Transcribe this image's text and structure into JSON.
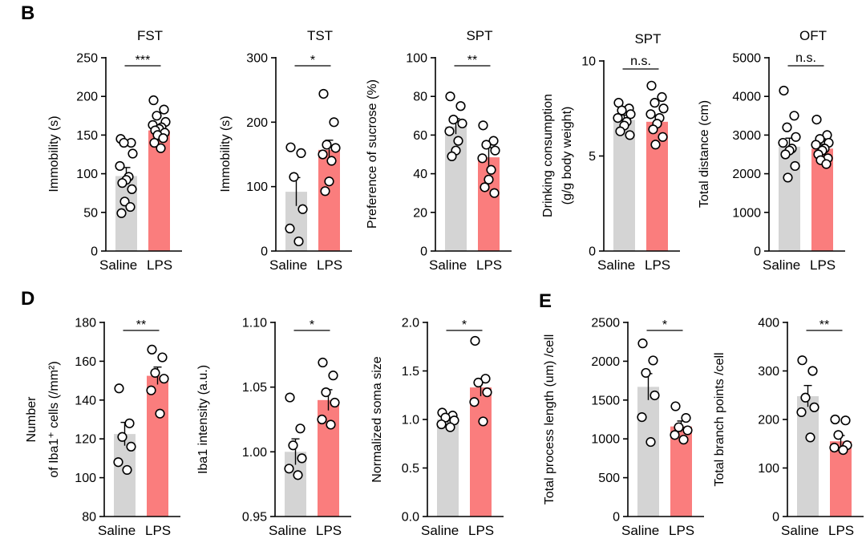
{
  "panel_letters": [
    "B",
    "D",
    "E"
  ],
  "colors": {
    "saline": "#d4d4d4",
    "lps": "#fa7d7d"
  },
  "chart_data": [
    {
      "type": "bar",
      "id": "fst",
      "title": "FST",
      "ylabel": "Immobility (s)",
      "categories": [
        "Saline",
        "LPS"
      ],
      "ylim": [
        0,
        250
      ],
      "yticks": [
        "0",
        "50",
        "100",
        "150",
        "200",
        "250"
      ],
      "values": [
        97,
        156
      ],
      "sem": [
        11,
        5
      ],
      "significance": "***",
      "points": [
        [
          145,
          140,
          140,
          126,
          110,
          96,
          92,
          88,
          80,
          64,
          57,
          49
        ],
        [
          195,
          183,
          175,
          167,
          163,
          160,
          158,
          156,
          153,
          150,
          146,
          140,
          133
        ]
      ]
    },
    {
      "type": "bar",
      "id": "tst",
      "title": "TST",
      "ylabel": "Immobility (s)",
      "categories": [
        "Saline",
        "LPS"
      ],
      "ylim": [
        0,
        300
      ],
      "yticks": [
        "0",
        "100",
        "200",
        "300"
      ],
      "values": [
        92,
        157
      ],
      "sem": [
        22,
        15
      ],
      "significance": "*",
      "points": [
        [
          161,
          152,
          115,
          65,
          35,
          15
        ],
        [
          244,
          200,
          165,
          160,
          150,
          140,
          108,
          93
        ]
      ]
    },
    {
      "type": "bar",
      "id": "spt-pref",
      "title": "SPT",
      "ylabel": "Preference of sucrose (%)",
      "categories": [
        "Saline",
        "LPS"
      ],
      "ylim": [
        0,
        100
      ],
      "yticks": [
        "0",
        "20",
        "40",
        "60",
        "80",
        "100"
      ],
      "values": [
        64.5,
        48.5
      ],
      "sem": [
        4,
        5
      ],
      "significance": "**",
      "points": [
        [
          80,
          75,
          68,
          66,
          62,
          57,
          52,
          49
        ],
        [
          65,
          57,
          55,
          52,
          48,
          42,
          37,
          33,
          30
        ]
      ]
    },
    {
      "type": "bar",
      "id": "spt-drink",
      "title": "SPT",
      "ylabel": "Drinking consumption",
      "ylabel2": "(g/g body weight)",
      "categories": [
        "Saline",
        "LPS"
      ],
      "ylim": [
        0,
        10
      ],
      "yticks": [
        "0",
        "5",
        "10"
      ],
      "values": [
        6.9,
        6.8
      ],
      "sem": [
        0.25,
        0.35
      ],
      "significance": "n.s.",
      "points": [
        [
          7.8,
          7.5,
          7.4,
          7.2,
          7.0,
          6.8,
          6.6,
          6.3,
          6.1
        ],
        [
          8.7,
          8.1,
          7.8,
          7.5,
          7.2,
          7.0,
          6.7,
          6.4,
          6.0,
          5.6
        ]
      ]
    },
    {
      "type": "bar",
      "id": "oft",
      "title": "OFT",
      "ylabel": "Total distance (cm)",
      "categories": [
        "Saline",
        "LPS"
      ],
      "ylim": [
        0,
        5000
      ],
      "yticks": [
        "0",
        "1000",
        "2000",
        "3000",
        "4000",
        "5000"
      ],
      "values": [
        2700,
        2650
      ],
      "sem": [
        220,
        110
      ],
      "significance": "n.s.",
      "points": [
        [
          4150,
          3500,
          3200,
          2950,
          2800,
          2650,
          2600,
          2500,
          2200,
          1900
        ],
        [
          3400,
          3000,
          2900,
          2800,
          2750,
          2650,
          2600,
          2500,
          2400,
          2350,
          2250
        ]
      ]
    },
    {
      "type": "bar",
      "id": "iba1-number",
      "title": "",
      "ylabel": "Number",
      "ylabel2": "of Iba1⁺ cells (/mm²)",
      "categories": [
        "Saline",
        "LPS"
      ],
      "ylim": [
        80,
        180
      ],
      "yticks": [
        "80",
        "100",
        "120",
        "140",
        "160",
        "180"
      ],
      "values": [
        122.5,
        152.5
      ],
      "sem": [
        6,
        4.5
      ],
      "significance": "**",
      "points": [
        [
          146,
          128,
          121,
          116,
          108,
          104
        ],
        [
          166,
          162,
          154,
          151,
          145,
          133
        ]
      ]
    },
    {
      "type": "bar",
      "id": "iba1-intensity",
      "title": "",
      "ylabel": "Iba1 intensity (a.u.)",
      "categories": [
        "Saline",
        "LPS"
      ],
      "ylim": [
        0.95,
        1.1
      ],
      "yticks": [
        "0.95",
        "1.00",
        "1.05",
        "1.10"
      ],
      "values": [
        1.0,
        1.04
      ],
      "sem": [
        0.01,
        0.008
      ],
      "significance": "*",
      "points": [
        [
          1.042,
          1.018,
          1.005,
          0.995,
          0.987,
          0.982
        ],
        [
          1.069,
          1.059,
          1.046,
          1.038,
          1.025,
          1.021
        ]
      ]
    },
    {
      "type": "bar",
      "id": "soma-size",
      "title": "",
      "ylabel": "Normalized soma size",
      "categories": [
        "Saline",
        "LPS"
      ],
      "ylim": [
        0,
        2
      ],
      "yticks": [
        "0.0",
        "0.5",
        "1.0",
        "1.5",
        "2.0"
      ],
      "values": [
        1.0,
        1.33
      ],
      "sem": [
        0.03,
        0.09
      ],
      "significance": "*",
      "points": [
        [
          1.07,
          1.04,
          1.02,
          0.99,
          0.95,
          0.92
        ],
        [
          1.81,
          1.42,
          1.38,
          1.28,
          1.18,
          0.98
        ]
      ]
    },
    {
      "type": "bar",
      "id": "process-length",
      "title": "",
      "ylabel": "Total process length (um) /cell",
      "categories": [
        "Saline",
        "LPS"
      ],
      "ylim": [
        0,
        2500
      ],
      "yticks": [
        "0",
        "500",
        "1000",
        "1500",
        "2000",
        "2500"
      ],
      "values": [
        1670,
        1160
      ],
      "sem": [
        170,
        70
      ],
      "significance": "*",
      "points": [
        [
          2230,
          2010,
          1850,
          1560,
          1280,
          960
        ],
        [
          1420,
          1270,
          1150,
          1110,
          1050,
          990
        ]
      ]
    },
    {
      "type": "bar",
      "id": "branch-points",
      "title": "",
      "ylabel": "Total branch points /cell",
      "categories": [
        "Saline",
        "LPS"
      ],
      "ylim": [
        0,
        400
      ],
      "yticks": [
        "0",
        "100",
        "200",
        "300",
        "400"
      ],
      "values": [
        248,
        155
      ],
      "sem": [
        22,
        12
      ],
      "significance": "**",
      "points": [
        [
          322,
          300,
          245,
          225,
          215,
          163
        ],
        [
          200,
          198,
          168,
          147,
          142,
          137
        ]
      ]
    }
  ]
}
